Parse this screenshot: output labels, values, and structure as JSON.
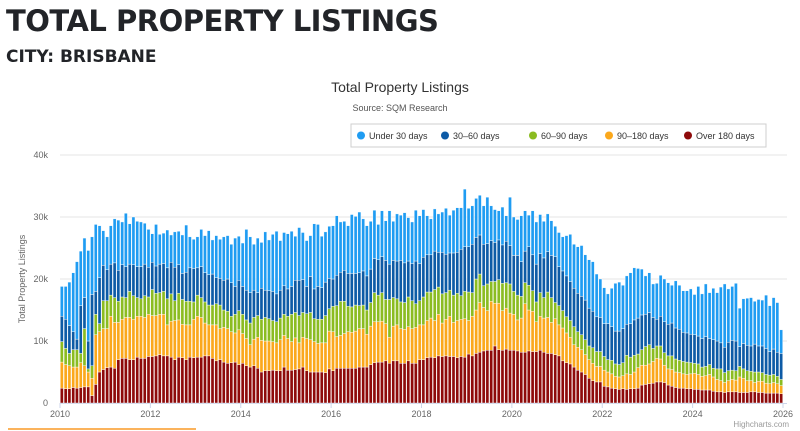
{
  "page": {
    "title": "TOTAL PROPERTY LISTINGS",
    "subtitle": "CITY: BRISBANE"
  },
  "credit": "Highcharts.com",
  "chart_data": {
    "type": "bar",
    "stacked": true,
    "title": "Total Property Listings",
    "subtitle": "Source: SQM Research",
    "ylabel": "Total Property Listings",
    "xlabel": "",
    "x_range": [
      "2010-01",
      "2025-12"
    ],
    "x_interval": "monthly",
    "ylim": [
      0,
      40000
    ],
    "y_ticks": [
      "0",
      "10k",
      "20k",
      "30k",
      "40k"
    ],
    "x_ticks": [
      "2010",
      "2012",
      "2014",
      "2016",
      "2018",
      "2020",
      "2022",
      "2024",
      "2026"
    ],
    "grid": true,
    "legend_position": "top-right",
    "series": [
      {
        "name": "Under 30 days",
        "color": "#1f9cf2",
        "values": [
          4800,
          5300,
          7000,
          9500,
          12500,
          8800,
          9600,
          14600,
          9300,
          10800,
          8400,
          5600,
          5300,
          6200,
          7100,
          8100,
          6900,
          8600,
          6500,
          7700,
          7300,
          7200,
          6600,
          6100,
          4600,
          6700,
          4800,
          4900,
          6100,
          4400,
          5700,
          5400,
          6200,
          7600,
          5000,
          4700,
          5000,
          6000,
          6000,
          7100,
          5500,
          6800,
          6300,
          7000,
          7000,
          6200,
          7800,
          7100,
          7000,
          9800,
          9000,
          7400,
          8800,
          7400,
          9400,
          8200,
          9200,
          10100,
          8000,
          8600,
          8900,
          8900,
          7100,
          8500,
          7600,
          7400,
          6600,
          10500,
          10000,
          8300,
          8100,
          8400,
          8600,
          9600,
          8100,
          7900,
          7700,
          9500,
          9200,
          9800,
          8400,
          8100,
          7700,
          7800,
          5700,
          7400,
          6400,
          8600,
          6300,
          7600,
          7300,
          8100,
          7000,
          6700,
          8200,
          7700,
          7700,
          6300,
          5800,
          6800,
          6200,
          6500,
          7400,
          6100,
          6900,
          7200,
          6700,
          9300,
          6200,
          6200,
          6300,
          6400,
          6200,
          7500,
          5600,
          5300,
          4700,
          6100,
          4100,
          7800,
          6200,
          5800,
          7400,
          6500,
          5100,
          7100,
          6800,
          6300,
          5900,
          6100,
          5600,
          4900,
          5500,
          5500,
          6500,
          7600,
          7100,
          7500,
          8200,
          7300,
          7800,
          8000,
          6900,
          6200,
          5800,
          4800,
          6200,
          7700,
          7900,
          7000,
          7800,
          8200,
          8400,
          8000,
          7400,
          6200,
          6400,
          5400,
          5800,
          6600,
          6900,
          6700,
          6100,
          7600,
          7100,
          6700,
          6800,
          7300,
          6500,
          8000,
          7200,
          8500,
          7400,
          8300,
          7800,
          9000,
          10200,
          8600,
          8700,
          9300,
          6200,
          7200,
          7600,
          7800,
          6900,
          7500,
          7400,
          8600,
          7400,
          8300,
          8000,
          3800
        ]
      },
      {
        "name": "30–60 days",
        "color": "#0d5ba6",
        "values": [
          4100,
          4700,
          4500,
          2900,
          1700,
          7700,
          5000,
          4500,
          11500,
          3700,
          7400,
          5700,
          5000,
          5000,
          5600,
          5000,
          5200,
          5000,
          4400,
          5000,
          5000,
          5200,
          5100,
          4800,
          4400,
          4400,
          4600,
          4500,
          5000,
          5100,
          5400,
          4600,
          4200,
          4700,
          5400,
          5400,
          4400,
          5000,
          4700,
          4900,
          5000,
          4200,
          4300,
          4800,
          5200,
          5400,
          4500,
          4900,
          4500,
          4800,
          4900,
          4400,
          3700,
          5000,
          4400,
          4500,
          4700,
          4500,
          4500,
          4600,
          4400,
          4500,
          5200,
          5700,
          5300,
          4400,
          5800,
          4800,
          5300,
          5100,
          5400,
          4900,
          4400,
          4900,
          4700,
          5000,
          5300,
          5400,
          5100,
          5300,
          5500,
          5500,
          5400,
          5500,
          5700,
          5800,
          6300,
          5700,
          6000,
          6100,
          6700,
          6400,
          5800,
          6000,
          6900,
          6000,
          6400,
          6000,
          6000,
          6200,
          5600,
          6700,
          6200,
          6000,
          6800,
          6600,
          7500,
          7200,
          7300,
          7800,
          6700,
          6300,
          6700,
          6500,
          6600,
          6300,
          6400,
          6200,
          6700,
          6200,
          5800,
          6400,
          5600,
          5100,
          6200,
          5800,
          6100,
          6300,
          6400,
          6500,
          6800,
          7400,
          6300,
          6400,
          6600,
          6300,
          6200,
          6200,
          6200,
          6400,
          6100,
          5900,
          5600,
          5500,
          5300,
          5800,
          5400,
          5300,
          5400,
          5500,
          5000,
          5400,
          5700,
          5800,
          5600,
          5200,
          5200,
          5000,
          4300,
          4800,
          5000,
          5100,
          5300,
          5000,
          5000,
          4700,
          4700,
          4600,
          4600,
          4500,
          4600,
          4800,
          4200,
          4600,
          4500,
          4200,
          4100,
          4600,
          4800,
          4800,
          3200,
          4100,
          4100,
          4100,
          4500,
          4200,
          4300,
          4200,
          3800,
          4100,
          3900,
          4200
        ]
      },
      {
        "name": "60–90 days",
        "color": "#8bbc21",
        "values": [
          3300,
          2600,
          2000,
          2800,
          2800,
          1500,
          6000,
          500,
          2000,
          3300,
          1300,
          4500,
          4500,
          3400,
          4000,
          3400,
          3600,
          3200,
          4200,
          3800,
          3000,
          2800,
          3500,
          2800,
          4200,
          3600,
          3500,
          3700,
          4200,
          4400,
          3200,
          4300,
          4000,
          3800,
          3800,
          2800,
          3400,
          3200,
          3400,
          3200,
          3200,
          3400,
          3800,
          2800,
          2800,
          2500,
          3000,
          3100,
          3100,
          3000,
          3500,
          3500,
          3500,
          3400,
          3800,
          3600,
          3400,
          3400,
          3500,
          3400,
          3600,
          4400,
          4100,
          4400,
          4000,
          4000,
          4400,
          3700,
          3900,
          3800,
          4400,
          3600,
          4100,
          5000,
          5500,
          5200,
          4100,
          4100,
          4200,
          3700,
          3800,
          3900,
          3800,
          4700,
          4300,
          4600,
          3900,
          6100,
          4600,
          4200,
          4300,
          4300,
          4800,
          4500,
          3800,
          3900,
          4500,
          4600,
          4200,
          5000,
          4400,
          4700,
          4300,
          4200,
          4400,
          4400,
          3800,
          4400,
          4600,
          3800,
          5000,
          4600,
          3500,
          4300,
          3200,
          3500,
          3800,
          4400,
          4100,
          4700,
          3700,
          4000,
          3500,
          3400,
          4000,
          3300,
          3200,
          3800,
          3300,
          4100,
          4000,
          2600,
          3100,
          2800,
          2600,
          2700,
          2900,
          2500,
          2400,
          2400,
          2200,
          2500,
          2400,
          2400,
          2200,
          2000,
          2200,
          2000,
          2000,
          2100,
          3000,
          2800,
          2700,
          2200,
          2500,
          3000,
          3100,
          2100,
          2000,
          2100,
          2000,
          2100,
          2200,
          2100,
          2000,
          2000,
          2000,
          1800,
          1600,
          1700,
          1500,
          1500,
          1600,
          1400,
          1700,
          1900,
          1600,
          1600,
          1500,
          1500,
          1700,
          1500,
          1600,
          1500,
          1700,
          1500,
          1400,
          1400,
          1400,
          1300,
          1200,
          1000
        ]
      },
      {
        "name": "90–180 days",
        "color": "#fba81c",
        "values": [
          4200,
          3900,
          3700,
          3300,
          3400,
          4000,
          3400,
          2400,
          2800,
          8000,
          6500,
          6600,
          6300,
          8200,
          7400,
          6000,
          6300,
          6600,
          6800,
          6500,
          6600,
          6800,
          6600,
          6800,
          6600,
          6500,
          6500,
          6700,
          5000,
          5800,
          6300,
          6000,
          5400,
          5600,
          5200,
          6200,
          6600,
          6400,
          5300,
          5000,
          5400,
          5800,
          5000,
          5600,
          5600,
          5000,
          4700,
          5600,
          4800,
          4400,
          3600,
          4300,
          5000,
          5100,
          4800,
          4800,
          4600,
          4500,
          5000,
          5100,
          5100,
          4600,
          5100,
          4200,
          4800,
          5200,
          5200,
          4900,
          4600,
          4700,
          4800,
          6100,
          6300,
          5100,
          5300,
          5600,
          5900,
          5800,
          6000,
          6200,
          6200,
          5300,
          6200,
          6600,
          6500,
          6600,
          6000,
          4200,
          5600,
          5800,
          5600,
          5500,
          5500,
          5600,
          5800,
          5600,
          5600,
          6000,
          6300,
          6000,
          6700,
          5400,
          5900,
          6500,
          5500,
          6000,
          6000,
          6200,
          5400,
          6400,
          7000,
          8000,
          7000,
          6400,
          7900,
          6900,
          7500,
          6400,
          6600,
          6000,
          5800,
          5000,
          5500,
          7800,
          6600,
          6500,
          4800,
          5500,
          5500,
          5800,
          5000,
          5800,
          5000,
          5300,
          4800,
          4300,
          3600,
          3700,
          3600,
          3200,
          3000,
          2800,
          2500,
          2500,
          2600,
          2400,
          2300,
          2000,
          2000,
          2100,
          2500,
          2300,
          2700,
          3300,
          3200,
          3100,
          3200,
          3500,
          3800,
          3700,
          2800,
          2600,
          2700,
          2500,
          2500,
          2300,
          2300,
          2400,
          2600,
          2400,
          2200,
          2300,
          2500,
          2300,
          2000,
          1800,
          1600,
          1800,
          2000,
          1900,
          2500,
          2300,
          1900,
          1800,
          1500,
          1800,
          1800,
          1600,
          1500,
          1700,
          1500,
          1300
        ]
      },
      {
        "name": "Over 180 days",
        "color": "#8e0a0a",
        "values": [
          2400,
          2300,
          2300,
          2500,
          2400,
          2500,
          2600,
          2600,
          1200,
          3000,
          5000,
          5400,
          5700,
          5800,
          5600,
          7000,
          7200,
          7200,
          7000,
          7000,
          7400,
          7200,
          7200,
          7500,
          7500,
          7600,
          7800,
          7600,
          7600,
          7400,
          7000,
          7400,
          7300,
          7000,
          7400,
          7300,
          7400,
          7400,
          7600,
          7600,
          7200,
          6800,
          7000,
          6600,
          6400,
          6500,
          6600,
          6200,
          6400,
          6000,
          5800,
          6000,
          5600,
          5000,
          5200,
          5200,
          5300,
          5200,
          5200,
          5800,
          5300,
          5300,
          5400,
          5500,
          5800,
          5200,
          5000,
          5000,
          5000,
          5000,
          4900,
          5500,
          5200,
          5600,
          5600,
          5600,
          5600,
          5600,
          5600,
          5800,
          5800,
          5800,
          6200,
          6500,
          6600,
          6600,
          6800,
          6400,
          6800,
          6800,
          6400,
          6400,
          6800,
          6400,
          6400,
          7000,
          7000,
          7300,
          7400,
          7300,
          7600,
          7500,
          7600,
          7500,
          7500,
          7300,
          7500,
          7400,
          7900,
          7600,
          8000,
          8200,
          8400,
          8500,
          8500,
          9200,
          8600,
          8500,
          8700,
          8500,
          8500,
          8400,
          8200,
          8200,
          8400,
          8300,
          8300,
          8500,
          8200,
          8000,
          8000,
          7800,
          7600,
          6800,
          6500,
          6300,
          5800,
          5300,
          5000,
          4600,
          4000,
          3600,
          3400,
          3400,
          2700,
          2600,
          2400,
          2300,
          2200,
          2300,
          2200,
          2300,
          2300,
          2400,
          2900,
          3000,
          3100,
          3200,
          3400,
          3400,
          3300,
          2900,
          2700,
          2500,
          2400,
          2400,
          2300,
          2300,
          2200,
          2200,
          2100,
          2100,
          2100,
          1900,
          1800,
          1800,
          1700,
          1800,
          1800,
          1800,
          1700,
          1700,
          1700,
          1800,
          1800,
          1700,
          1700,
          1600,
          1600,
          1600,
          1600,
          1500
        ]
      }
    ]
  }
}
